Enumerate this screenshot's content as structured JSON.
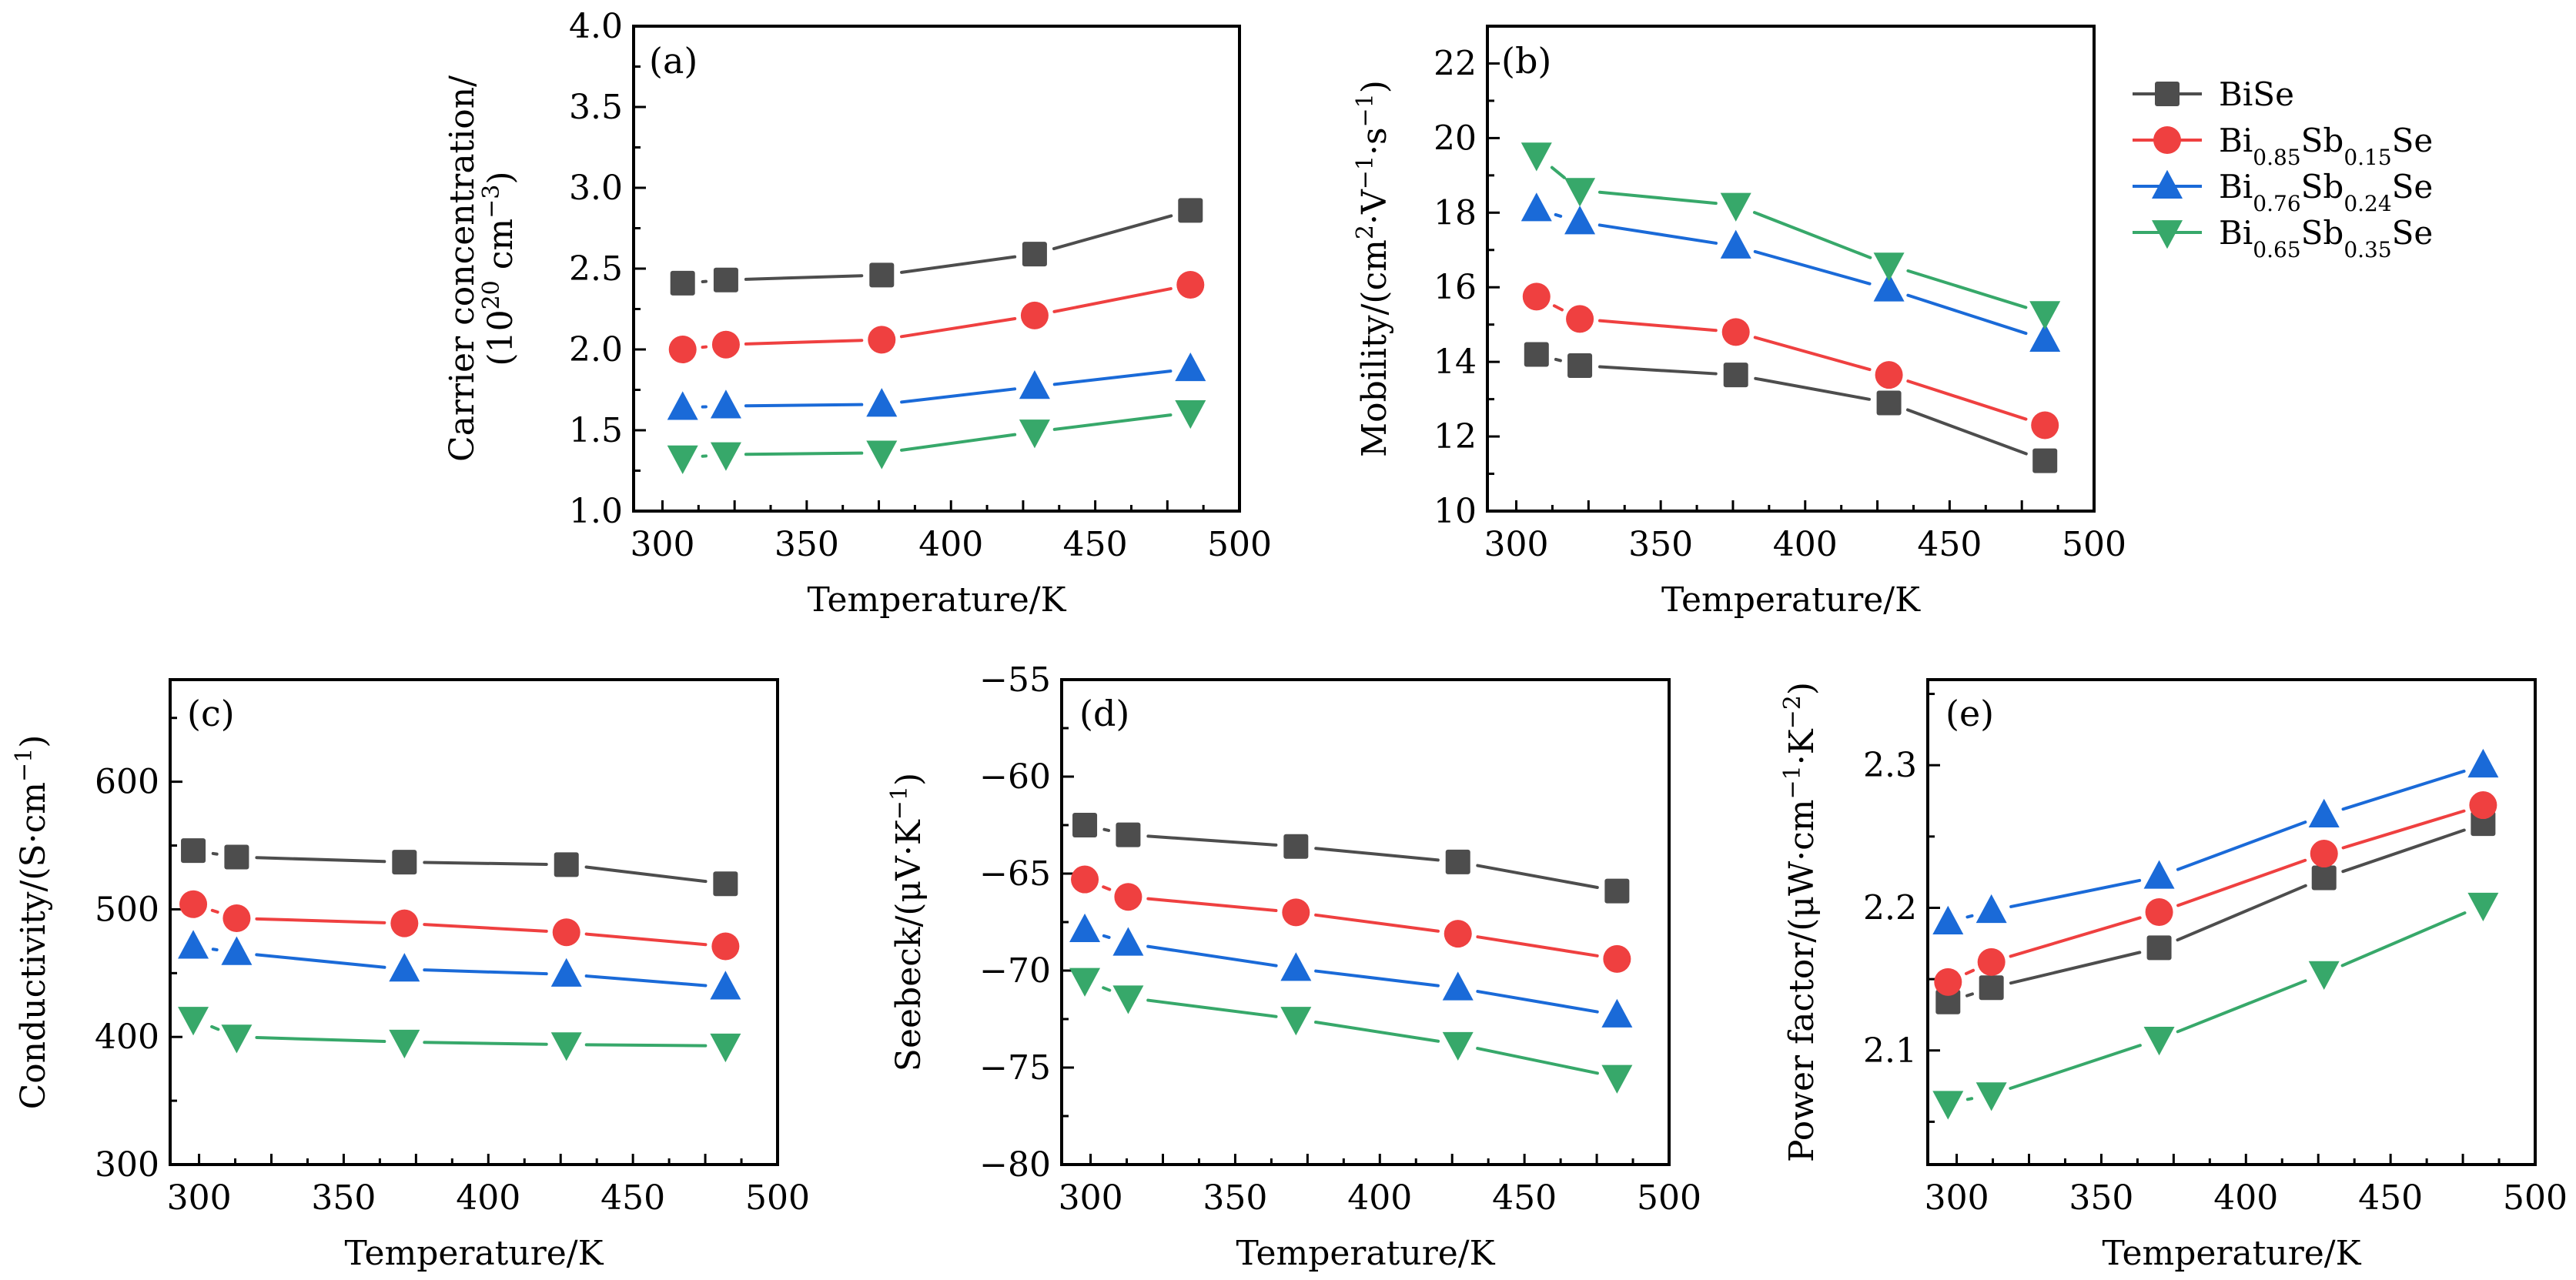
{
  "figure": {
    "legend": {
      "position": "right of panel (b)",
      "entries": [
        {
          "series_index": 0,
          "base": "BiSe",
          "parts": [
            {
              "t": "BiSe",
              "sub": false
            }
          ]
        },
        {
          "series_index": 1,
          "base": "Bi0.85Sb0.15Se",
          "parts": [
            {
              "t": "Bi",
              "sub": false
            },
            {
              "t": "0.85",
              "sub": true
            },
            {
              "t": "Sb",
              "sub": false
            },
            {
              "t": "0.15",
              "sub": true
            },
            {
              "t": "Se",
              "sub": false
            }
          ]
        },
        {
          "series_index": 2,
          "base": "Bi0.76Sb0.24Se",
          "parts": [
            {
              "t": "Bi",
              "sub": false
            },
            {
              "t": "0.76",
              "sub": true
            },
            {
              "t": "Sb",
              "sub": false
            },
            {
              "t": "0.24",
              "sub": true
            },
            {
              "t": "Se",
              "sub": false
            }
          ]
        },
        {
          "series_index": 3,
          "base": "Bi0.65Sb0.35Se",
          "parts": [
            {
              "t": "Bi",
              "sub": false
            },
            {
              "t": "0.65",
              "sub": true
            },
            {
              "t": "Sb",
              "sub": false
            },
            {
              "t": "0.35",
              "sub": true
            },
            {
              "t": "Se",
              "sub": false
            }
          ]
        }
      ]
    },
    "series_styles": [
      {
        "name": "BiSe",
        "color": "#4d4d4d",
        "marker": "square"
      },
      {
        "name": "Bi0.85Sb0.15Se",
        "color": "#ef4040",
        "marker": "circle"
      },
      {
        "name": "Bi0.76Sb0.24Se",
        "color": "#1a6ad8",
        "marker": "triangle-up"
      },
      {
        "name": "Bi0.65Sb0.35Se",
        "color": "#37a86a",
        "marker": "triangle-down"
      }
    ]
  },
  "chart_data": [
    {
      "id": "a",
      "type": "line",
      "panel_label": "(a)",
      "title": "",
      "xlabel": "Temperature/K",
      "ylabel_lines": [
        "Carrier concentration/",
        "(10^20 cm^-3)"
      ],
      "ylabel_rich": [
        [
          {
            "t": "Carrier concentration/"
          }
        ],
        [
          {
            "t": "(10"
          },
          {
            "t": "20",
            "sup": true
          },
          {
            "t": " cm"
          },
          {
            "t": "−3",
            "sup": true
          },
          {
            "t": ")"
          }
        ]
      ],
      "xlim": [
        290,
        500
      ],
      "ylim": [
        1.0,
        4.0
      ],
      "xticks": [
        300,
        350,
        400,
        450,
        500
      ],
      "xtick_labels": [
        "300",
        "350",
        "400",
        "450",
        "500"
      ],
      "yticks": [
        1.0,
        1.5,
        2.0,
        2.5,
        3.0,
        3.5,
        4.0
      ],
      "ytick_labels": [
        "1.0",
        "1.5",
        "2.0",
        "2.5",
        "3.0",
        "3.5",
        "4.0"
      ],
      "x": [
        307,
        322,
        376,
        429,
        483
      ],
      "series": [
        {
          "name": "BiSe",
          "values": [
            2.41,
            2.43,
            2.46,
            2.59,
            2.86
          ]
        },
        {
          "name": "Bi0.85Sb0.15Se",
          "values": [
            2.0,
            2.03,
            2.06,
            2.21,
            2.4
          ]
        },
        {
          "name": "Bi0.76Sb0.24Se",
          "values": [
            1.64,
            1.65,
            1.66,
            1.77,
            1.88
          ]
        },
        {
          "name": "Bi0.65Sb0.35Se",
          "values": [
            1.33,
            1.35,
            1.36,
            1.49,
            1.61
          ]
        }
      ],
      "grid": false
    },
    {
      "id": "b",
      "type": "line",
      "panel_label": "(b)",
      "title": "",
      "xlabel": "Temperature/K",
      "ylabel_lines": [
        "Mobility/(cm^2·V^-1·s^-1)"
      ],
      "ylabel_rich": [
        [
          {
            "t": "Mobility/(cm"
          },
          {
            "t": "2",
            "sup": true
          },
          {
            "t": "·V"
          },
          {
            "t": "−1",
            "sup": true
          },
          {
            "t": "·s"
          },
          {
            "t": "−1",
            "sup": true
          },
          {
            "t": ")"
          }
        ]
      ],
      "xlim": [
        290,
        500
      ],
      "ylim": [
        10,
        23
      ],
      "xticks": [
        300,
        350,
        400,
        450,
        500
      ],
      "xtick_labels": [
        "300",
        "350",
        "400",
        "450",
        "500"
      ],
      "yticks": [
        10,
        12,
        14,
        16,
        18,
        20,
        22
      ],
      "ytick_labels": [
        "10",
        "12",
        "14",
        "16",
        "18",
        "20",
        "22"
      ],
      "x": [
        307,
        322,
        376,
        429,
        483
      ],
      "series": [
        {
          "name": "BiSe",
          "values": [
            14.2,
            13.9,
            13.65,
            12.9,
            11.35
          ]
        },
        {
          "name": "Bi0.85Sb0.15Se",
          "values": [
            15.75,
            15.15,
            14.8,
            13.65,
            12.3
          ]
        },
        {
          "name": "Bi0.76Sb0.24Se",
          "values": [
            18.1,
            17.75,
            17.1,
            15.95,
            14.6
          ]
        },
        {
          "name": "Bi0.65Sb0.35Se",
          "values": [
            19.55,
            18.6,
            18.2,
            16.6,
            15.3
          ]
        }
      ],
      "grid": false
    },
    {
      "id": "c",
      "type": "line",
      "panel_label": "(c)",
      "title": "",
      "xlabel": "Temperature/K",
      "ylabel_lines": [
        "Conductivity/(S·cm^-1)"
      ],
      "ylabel_rich": [
        [
          {
            "t": "Conductivity/(S·cm"
          },
          {
            "t": "−1",
            "sup": true
          },
          {
            "t": ")"
          }
        ]
      ],
      "xlim": [
        290,
        500
      ],
      "ylim": [
        300,
        680
      ],
      "xticks": [
        300,
        350,
        400,
        450,
        500
      ],
      "xtick_labels": [
        "300",
        "350",
        "400",
        "450",
        "500"
      ],
      "yticks": [
        300,
        400,
        500,
        600
      ],
      "ytick_labels": [
        "300",
        "400",
        "500",
        "600"
      ],
      "x": [
        298,
        313,
        371,
        427,
        482
      ],
      "series": [
        {
          "name": "BiSe",
          "values": [
            546,
            541,
            537,
            535,
            520
          ]
        },
        {
          "name": "Bi0.85Sb0.15Se",
          "values": [
            504,
            493,
            489,
            482,
            471
          ]
        },
        {
          "name": "Bi0.76Sb0.24Se",
          "values": [
            471,
            466,
            453,
            449,
            439
          ]
        },
        {
          "name": "Bi0.65Sb0.35Se",
          "values": [
            414,
            400,
            396,
            394,
            393
          ]
        }
      ],
      "grid": false
    },
    {
      "id": "d",
      "type": "line",
      "panel_label": "(d)",
      "title": "",
      "xlabel": "Temperature/K",
      "ylabel_lines": [
        "Seebeck/(μV·K^-1)"
      ],
      "ylabel_rich": [
        [
          {
            "t": "Seebeck/(μV·K"
          },
          {
            "t": "−1",
            "sup": true
          },
          {
            "t": ")"
          }
        ]
      ],
      "xlim": [
        290,
        500
      ],
      "ylim": [
        -80,
        -55
      ],
      "xticks": [
        300,
        350,
        400,
        450,
        500
      ],
      "xtick_labels": [
        "300",
        "350",
        "400",
        "450",
        "500"
      ],
      "yticks": [
        -80,
        -75,
        -70,
        -65,
        -60,
        -55
      ],
      "ytick_labels": [
        "−80",
        "−75",
        "−70",
        "−65",
        "−60",
        "−55"
      ],
      "x": [
        298,
        313,
        371,
        427,
        482
      ],
      "series": [
        {
          "name": "BiSe",
          "values": [
            -62.5,
            -63.0,
            -63.6,
            -64.4,
            -65.9
          ]
        },
        {
          "name": "Bi0.85Sb0.15Se",
          "values": [
            -65.3,
            -66.2,
            -67.0,
            -68.1,
            -69.4
          ]
        },
        {
          "name": "Bi0.76Sb0.24Se",
          "values": [
            -67.9,
            -68.6,
            -69.9,
            -70.9,
            -72.3
          ]
        },
        {
          "name": "Bi0.65Sb0.35Se",
          "values": [
            -70.5,
            -71.4,
            -72.5,
            -73.8,
            -75.5
          ]
        }
      ],
      "grid": false
    },
    {
      "id": "e",
      "type": "line",
      "panel_label": "(e)",
      "title": "",
      "xlabel": "Temperature/K",
      "ylabel_lines": [
        "Power factor/(μW·cm^-1·K^-2)"
      ],
      "ylabel_rich": [
        [
          {
            "t": "Power factor/(μW·cm"
          },
          {
            "t": "−1",
            "sup": true
          },
          {
            "t": "·K"
          },
          {
            "t": "−2",
            "sup": true
          },
          {
            "t": ")"
          }
        ]
      ],
      "xlim": [
        290,
        500
      ],
      "ylim": [
        2.02,
        2.36
      ],
      "xticks": [
        300,
        350,
        400,
        450,
        500
      ],
      "xtick_labels": [
        "300",
        "350",
        "400",
        "450",
        "500"
      ],
      "yticks": [
        2.1,
        2.2,
        2.3
      ],
      "ytick_labels": [
        "2.1",
        "2.2",
        "2.3"
      ],
      "x": [
        297,
        312,
        370,
        427,
        482
      ],
      "series": [
        {
          "name": "BiSe",
          "values": [
            2.134,
            2.144,
            2.172,
            2.221,
            2.259
          ]
        },
        {
          "name": "Bi0.85Sb0.15Se",
          "values": [
            2.148,
            2.162,
            2.197,
            2.238,
            2.272
          ]
        },
        {
          "name": "Bi0.76Sb0.24Se",
          "values": [
            2.19,
            2.198,
            2.222,
            2.265,
            2.3
          ]
        },
        {
          "name": "Bi0.65Sb0.35Se",
          "values": [
            2.063,
            2.069,
            2.108,
            2.154,
            2.202
          ]
        }
      ],
      "grid": false
    }
  ]
}
